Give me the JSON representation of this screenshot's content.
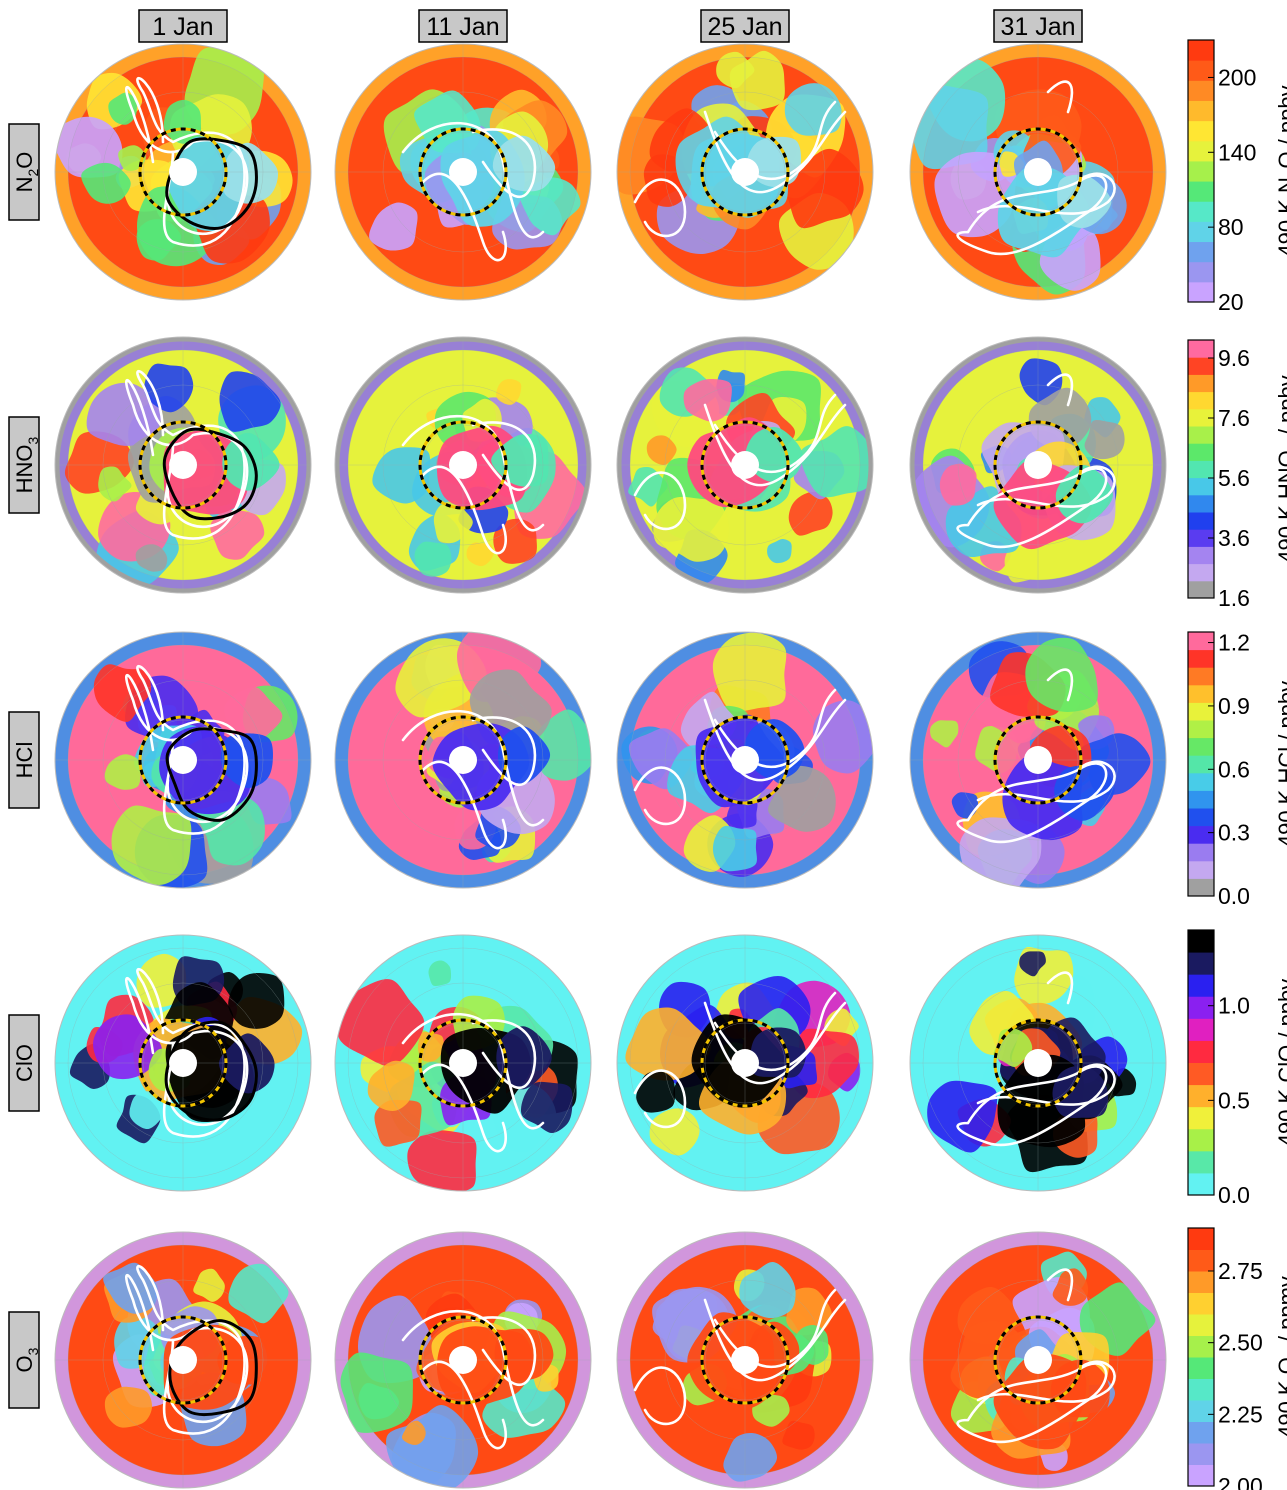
{
  "chart_data": {
    "type": "heatmap",
    "layout": "5 rows x 4 columns of polar stereographic maps, each row with its own colorbar on the right",
    "columns": [
      "1 Jan",
      "11 Jan",
      "25 Jan",
      "31 Jan"
    ],
    "rows": [
      {
        "label_main": "N",
        "label_sub": "2",
        "label_tail": "O",
        "cb_label": "490 K N₂O / ppbv",
        "ticks": [
          "200",
          "140",
          "80",
          "20"
        ],
        "range": [
          20,
          230
        ],
        "colors": [
          "#c9a3ff",
          "#9b96f0",
          "#6fa2ee",
          "#60d3e8",
          "#56e8c8",
          "#55e878",
          "#a6f04b",
          "#e6f23c",
          "#ffe633",
          "#ffba2c",
          "#ff8a24",
          "#ff5a18",
          "#ff3a10"
        ],
        "background": "#ff4a14",
        "center_fill": "#60d3e8",
        "east_fill": "#9bdfe8",
        "ring_fill": "#ffb02c",
        "gray_ring": false
      },
      {
        "label_main": "HNO",
        "label_sub": "3",
        "label_tail": "",
        "cb_label": "490 K HNO₃ / ppbv",
        "ticks": [
          "9.6",
          "7.6",
          "5.6",
          "3.6",
          "1.6"
        ],
        "range": [
          1.6,
          10.2
        ],
        "colors": [
          "#a0a0a0",
          "#c4a8f0",
          "#a484f0",
          "#5a3cf0",
          "#2040ee",
          "#3088ee",
          "#48c8e8",
          "#52e6b0",
          "#5ce86a",
          "#a8f04a",
          "#e8f23a",
          "#ffd830",
          "#ff9a28",
          "#ff4424",
          "#ff6aa0"
        ],
        "background": "#e6f23c",
        "center_fill": "#ff4a7e",
        "east_fill": "#52e6b0",
        "ring_fill": "#8a6cf0",
        "gray_ring": true
      },
      {
        "label_main": "HCl",
        "label_sub": "",
        "label_tail": "",
        "cb_label": "490 K HCl / ppbv",
        "ticks": [
          "1.2",
          "0.9",
          "0.6",
          "0.3",
          "0.0"
        ],
        "range": [
          0.0,
          1.25
        ],
        "colors": [
          "#a0a0a0",
          "#c4a8f0",
          "#9a7cf0",
          "#4a2cf0",
          "#2050ee",
          "#3094ee",
          "#48cce8",
          "#54e6a8",
          "#66e866",
          "#b0f046",
          "#e8f23a",
          "#ffc02c",
          "#ff7a24",
          "#ff3428",
          "#ff6a9c"
        ],
        "background": "#ff6a9a",
        "center_fill": "#4a2cf0",
        "east_fill": "#2050ee",
        "ring_fill": "#3094ee",
        "gray_ring": false
      },
      {
        "label_main": "ClO",
        "label_sub": "",
        "label_tail": "",
        "cb_label": "490 K ClO / ppbv",
        "ticks": [
          "1.0",
          "0.5",
          "0.0"
        ],
        "range": [
          0.0,
          1.4
        ],
        "colors": [
          "#62f2f2",
          "#58e8a8",
          "#a8f048",
          "#f0f03a",
          "#ffb02c",
          "#ff5a24",
          "#ff2a40",
          "#e020c0",
          "#8a20f0",
          "#2a20f0",
          "#1a1a60",
          "#000000"
        ],
        "background": "#62f2f2",
        "center_fill": "#000000",
        "east_fill": "#1a1a60",
        "ring_fill": "#62f2f2",
        "gray_ring": false
      },
      {
        "label_main": "O",
        "label_sub": "3",
        "label_tail": "",
        "cb_label": "490 K O₃ / ppmv",
        "ticks": [
          "2.75",
          "2.50",
          "2.25",
          "2.00"
        ],
        "range": [
          2.0,
          2.9
        ],
        "colors": [
          "#c9a3ff",
          "#9b96f0",
          "#6fa2ee",
          "#60d3e8",
          "#56e8c8",
          "#55e878",
          "#a6f04b",
          "#e6f23c",
          "#ffd030",
          "#ff9a28",
          "#ff5a18",
          "#ff3a10"
        ],
        "background": "#ff4a14",
        "center_fill": "#ff4a14",
        "east_fill": "#ff4a14",
        "ring_fill": "#c9a3ff",
        "gray_ring": false
      }
    ]
  }
}
